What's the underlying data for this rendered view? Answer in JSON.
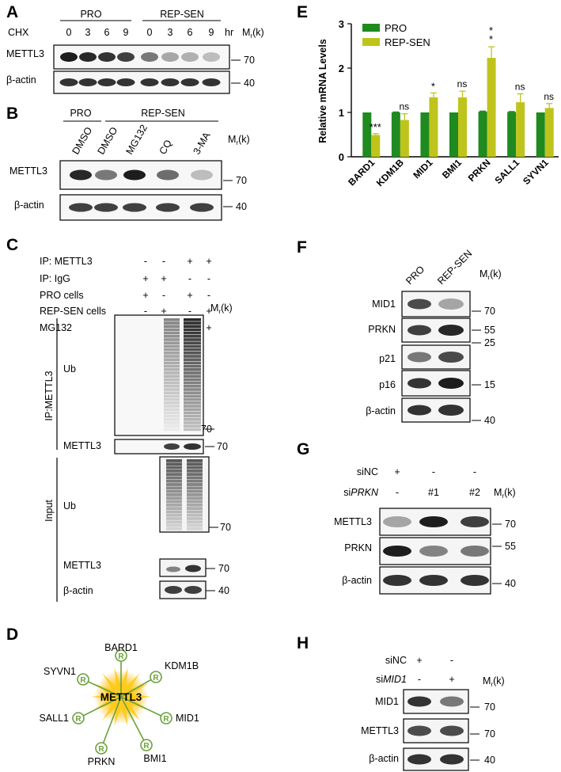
{
  "panels": {
    "A": {
      "letter": "A",
      "groups": [
        "PRO",
        "REP-SEN"
      ],
      "row_label": "CHX",
      "timepoints": [
        "0",
        "3",
        "6",
        "9",
        "0",
        "3",
        "6",
        "9"
      ],
      "unit": "hr",
      "mr_label": "Mr(k)",
      "blots": [
        {
          "name": "METTL3",
          "marker": "70"
        },
        {
          "name": "β-actin",
          "marker": "40"
        }
      ]
    },
    "B": {
      "letter": "B",
      "groups": [
        "PRO",
        "REP-SEN"
      ],
      "treatments": [
        "DMSO",
        "DMSO",
        "MG132",
        "CQ",
        "3-MA"
      ],
      "mr_label": "Mr(k)",
      "blots": [
        {
          "name": "METTL3",
          "marker": "70"
        },
        {
          "name": "β-actin",
          "marker": "40"
        }
      ]
    },
    "C": {
      "letter": "C",
      "conditions": [
        {
          "label": "IP: METTL3",
          "signs": [
            "-",
            "-",
            "+",
            "+"
          ]
        },
        {
          "label": "IP: IgG",
          "signs": [
            "+",
            "+",
            "-",
            "-"
          ]
        },
        {
          "label": "PRO cells",
          "signs": [
            "+",
            "-",
            "+",
            "-"
          ]
        },
        {
          "label": "REP-SEN cells",
          "signs": [
            "-",
            "+",
            "-",
            "+"
          ]
        },
        {
          "label": "MG132",
          "signs": [
            "+",
            "+",
            "+",
            "+"
          ]
        }
      ],
      "mr_label": "Mr(k)",
      "section_ip": "IP:METTL3",
      "section_input": "Input",
      "blots": [
        {
          "name": "Ub",
          "marker": "70"
        },
        {
          "name": "METTL3",
          "marker": "70"
        },
        {
          "name": "Ub",
          "marker": "70"
        },
        {
          "name": "METTL3",
          "marker": "70"
        },
        {
          "name": "β-actin",
          "marker": "40"
        }
      ]
    },
    "D": {
      "letter": "D",
      "center": "METTL3",
      "node_symbol": "R",
      "nodes": [
        "BARD1",
        "KDM1B",
        "MID1",
        "BMI1",
        "PRKN",
        "SALL1",
        "SYVN1"
      ]
    },
    "E": {
      "letter": "E"
    },
    "F": {
      "letter": "F",
      "columns": [
        "PRO",
        "REP-SEN"
      ],
      "mr_label": "Mr(k)",
      "blots": [
        {
          "name": "MID1",
          "marker": "70"
        },
        {
          "name": "PRKN",
          "marker": "55"
        },
        {
          "name": "p21",
          "marker": "25"
        },
        {
          "name": "p16",
          "marker": "15"
        },
        {
          "name": "β-actin",
          "marker": "40"
        }
      ]
    },
    "G": {
      "letter": "G",
      "conditions": [
        {
          "label": "siNC",
          "signs": [
            "+",
            "-",
            "-"
          ]
        },
        {
          "label_prefix": "si",
          "label_gene": "PRKN",
          "signs": [
            "-",
            "#1",
            "#2"
          ]
        }
      ],
      "mr_label": "Mr(k)",
      "blots": [
        {
          "name": "METTL3",
          "marker": "70"
        },
        {
          "name": "PRKN",
          "marker": "55"
        },
        {
          "name": "β-actin",
          "marker": "40"
        }
      ]
    },
    "H": {
      "letter": "H",
      "conditions": [
        {
          "label": "siNC",
          "signs": [
            "+",
            "-"
          ]
        },
        {
          "label_prefix": "si",
          "label_gene": "MID1",
          "signs": [
            "-",
            "+"
          ]
        }
      ],
      "mr_label": "Mr(k)",
      "blots": [
        {
          "name": "MID1",
          "marker": "70"
        },
        {
          "name": "METTL3",
          "marker": "70"
        },
        {
          "name": "β-actin",
          "marker": "40"
        }
      ]
    }
  },
  "chart_data": {
    "type": "bar",
    "title": "",
    "ylabel": "Relative mRNA Levels",
    "xlabel": "",
    "ylim": [
      0,
      3
    ],
    "yticks": [
      "0",
      "1",
      "2",
      "3"
    ],
    "categories": [
      "BARD1",
      "KDM1B",
      "MID1",
      "BMI1",
      "PRKN",
      "SALL1",
      "SYVN1"
    ],
    "legend_position": "top-left",
    "series": [
      {
        "name": "PRO",
        "color": "#1f8a1f",
        "values": [
          1.0,
          1.0,
          1.0,
          1.0,
          1.02,
          1.01,
          1.0
        ],
        "errors": [
          0,
          0.01,
          0,
          0,
          0.01,
          0.01,
          0
        ]
      },
      {
        "name": "REP-SEN",
        "color": "#bfc41c",
        "values": [
          0.49,
          0.83,
          1.34,
          1.34,
          2.23,
          1.23,
          1.1
        ],
        "errors": [
          0.03,
          0.14,
          0.1,
          0.14,
          0.25,
          0.19,
          0.1
        ]
      }
    ],
    "significance": [
      "***",
      "ns",
      "*",
      "ns",
      "**",
      "ns",
      "ns"
    ]
  }
}
